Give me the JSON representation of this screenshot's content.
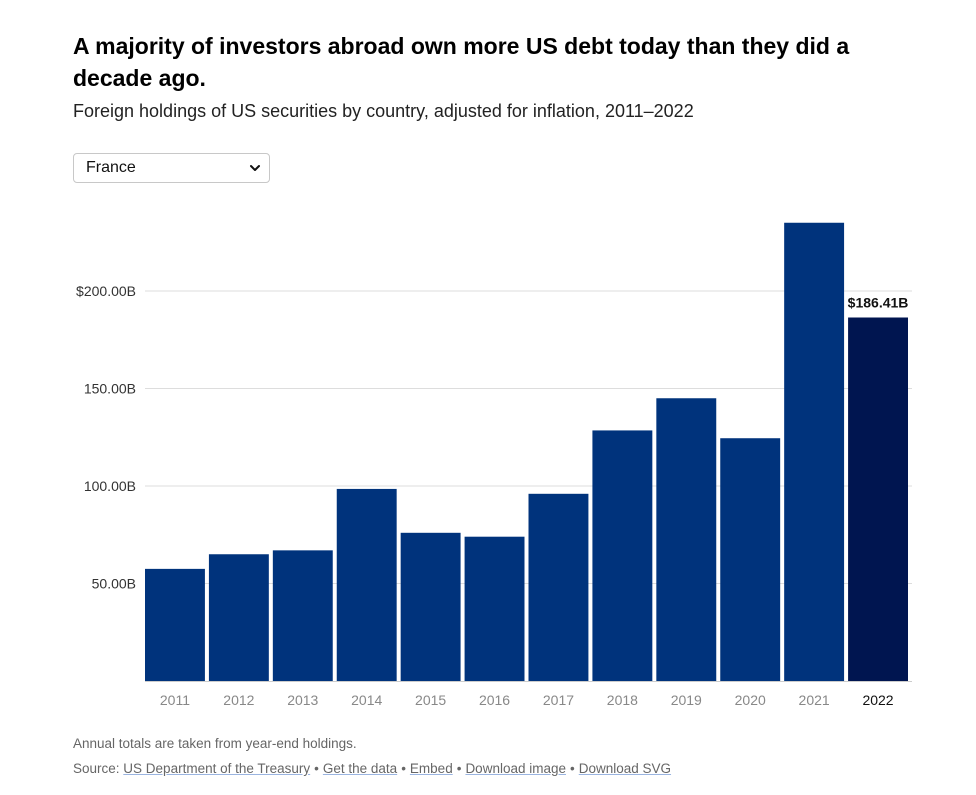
{
  "title": "A majority of investors abroad own more US debt today than they did a decade ago.",
  "subtitle": "Foreign holdings of US securities by country, adjusted for inflation, 2011–2022",
  "selector": {
    "selected": "France"
  },
  "chart_data": {
    "type": "bar",
    "categories": [
      "2011",
      "2012",
      "2013",
      "2014",
      "2015",
      "2016",
      "2017",
      "2018",
      "2019",
      "2020",
      "2021",
      "2022"
    ],
    "values": [
      57.5,
      65,
      67,
      98.5,
      76,
      74,
      96,
      128.5,
      145,
      124.5,
      235,
      186.41
    ],
    "highlight_index": 11,
    "highlight_label": "$186.41B",
    "yticks": [
      50,
      100,
      150,
      200
    ],
    "ytick_labels": [
      "50.00B",
      "100.00B",
      "150.00B",
      "$200.00B"
    ],
    "ylim": [
      0,
      250
    ],
    "grid": true,
    "colors": {
      "bar": "#00337c",
      "highlight": "#001550",
      "grid": "#dddddd",
      "axis": "#cccccc"
    }
  },
  "footer": {
    "note": "Annual totals are taken from year-end holdings.",
    "source_prefix": "Source:",
    "links": [
      "US Department of the Treasury",
      "Get the data",
      "Embed",
      "Download image",
      "Download SVG"
    ],
    "separator": "•"
  }
}
